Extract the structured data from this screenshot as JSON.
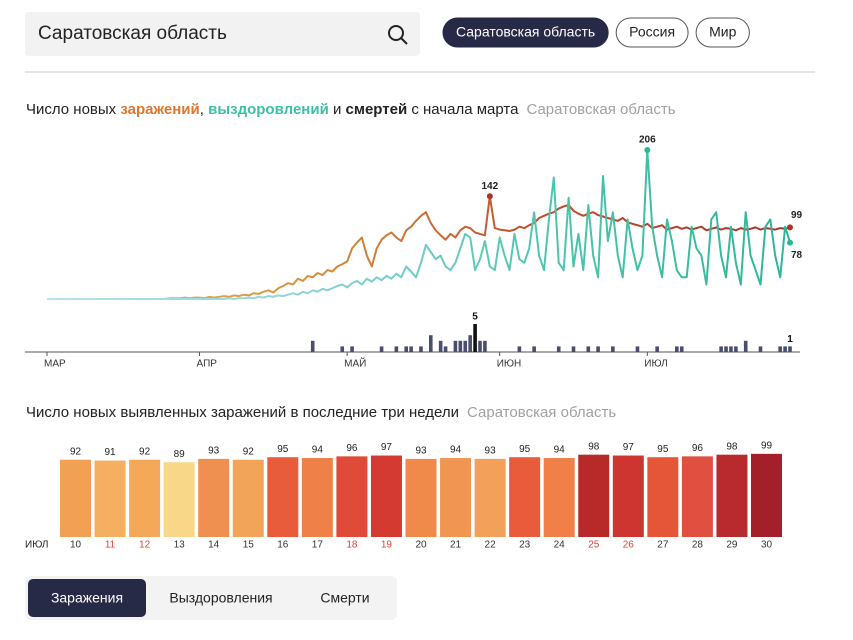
{
  "search": {
    "value": "Саратовская область"
  },
  "region_buttons": {
    "items": [
      "Саратовская область",
      "Россия",
      "Мир"
    ],
    "active": 0
  },
  "chart_data": [
    {
      "type": "line",
      "title_parts": [
        "Число новых ",
        ", ",
        " и ",
        " с начала марта"
      ],
      "region": "Саратовская область",
      "xlim": [
        0,
        151
      ],
      "xticks": [
        {
          "value": 0,
          "label": "МАР"
        },
        {
          "value": 31,
          "label": "АПР"
        },
        {
          "value": 61,
          "label": "МАЙ"
        },
        {
          "value": 92,
          "label": "ИЮН"
        },
        {
          "value": 122,
          "label": "ИЮЛ"
        }
      ],
      "ylim": [
        0,
        206
      ],
      "y2lim": [
        0,
        5
      ],
      "label_points": [
        "max",
        "last"
      ],
      "series": [
        {
          "name": "заражений",
          "color": "#e0762f",
          "gradient": [
            "#e6c46a",
            "#d9923e",
            "#bd4b2c",
            "#a8342a"
          ],
          "values": [
            0,
            0,
            0,
            0,
            0,
            0,
            0,
            0,
            0,
            0,
            0,
            0,
            0,
            0,
            0,
            0,
            0,
            0,
            0,
            0,
            0,
            0,
            0,
            0,
            0,
            1,
            1,
            1,
            2,
            1,
            2,
            2,
            1,
            3,
            2,
            3,
            4,
            3,
            5,
            4,
            6,
            5,
            8,
            7,
            10,
            12,
            9,
            15,
            18,
            22,
            20,
            28,
            25,
            32,
            30,
            36,
            33,
            40,
            38,
            45,
            48,
            52,
            70,
            78,
            85,
            60,
            45,
            70,
            82,
            88,
            92,
            85,
            80,
            95,
            100,
            108,
            115,
            120,
            105,
            95,
            88,
            82,
            90,
            85,
            95,
            100,
            98,
            92,
            90,
            88,
            142,
            98,
            96,
            95,
            94,
            96,
            100,
            98,
            102,
            105,
            112,
            115,
            118,
            120,
            125,
            128,
            130,
            122,
            118,
            115,
            118,
            120,
            116,
            114,
            112,
            110,
            108,
            112,
            106,
            104,
            102,
            100,
            104,
            98,
            100,
            102,
            96,
            98,
            100,
            97,
            99,
            96,
            98,
            100,
            95,
            97,
            99,
            96,
            98,
            97,
            95,
            98,
            96,
            97,
            99,
            96,
            98,
            97,
            96,
            98,
            97,
            99
          ]
        },
        {
          "name": "выздоровлений",
          "color": "#3cbfa3",
          "gradient": [
            "#b9e2e6",
            "#8fd3d8",
            "#4cc6ad",
            "#2cb596"
          ],
          "values": [
            0,
            0,
            0,
            0,
            0,
            0,
            0,
            0,
            0,
            0,
            0,
            0,
            0,
            0,
            0,
            0,
            0,
            0,
            0,
            0,
            0,
            0,
            0,
            0,
            0,
            0,
            0,
            0,
            0,
            0,
            0,
            0,
            0,
            0,
            0,
            0,
            0,
            1,
            0,
            1,
            1,
            2,
            1,
            3,
            2,
            4,
            3,
            5,
            4,
            6,
            8,
            6,
            10,
            8,
            12,
            10,
            14,
            12,
            15,
            18,
            20,
            16,
            22,
            25,
            20,
            28,
            24,
            30,
            26,
            32,
            28,
            35,
            30,
            45,
            38,
            30,
            50,
            75,
            65,
            55,
            60,
            45,
            40,
            50,
            70,
            90,
            85,
            40,
            55,
            80,
            45,
            40,
            85,
            60,
            40,
            90,
            55,
            50,
            70,
            120,
            60,
            40,
            110,
            168,
            50,
            40,
            140,
            45,
            90,
            40,
            130,
            60,
            30,
            170,
            80,
            120,
            60,
            30,
            110,
            70,
            40,
            60,
            206,
            100,
            60,
            30,
            110,
            80,
            40,
            30,
            30,
            100,
            70,
            60,
            20,
            110,
            120,
            60,
            30,
            100,
            50,
            20,
            120,
            60,
            40,
            20,
            100,
            110,
            60,
            30,
            100,
            78
          ]
        },
        {
          "name": "смертей",
          "type": "bar",
          "axis": "y2",
          "color": "#4a4e6e",
          "max_color": "#111111",
          "values": [
            0,
            0,
            0,
            0,
            0,
            0,
            0,
            0,
            0,
            0,
            0,
            0,
            0,
            0,
            0,
            0,
            0,
            0,
            0,
            0,
            0,
            0,
            0,
            0,
            0,
            0,
            0,
            0,
            0,
            0,
            0,
            0,
            0,
            0,
            0,
            0,
            0,
            0,
            0,
            0,
            0,
            0,
            0,
            0,
            0,
            0,
            0,
            0,
            0,
            0,
            0,
            0,
            0,
            0,
            2,
            0,
            0,
            0,
            0,
            0,
            1,
            0,
            1,
            0,
            0,
            0,
            0,
            0,
            1,
            0,
            0,
            1,
            0,
            1,
            1,
            0,
            1,
            0,
            3,
            0,
            2,
            1,
            0,
            2,
            2,
            2,
            3,
            5,
            2,
            2,
            0,
            0,
            0,
            0,
            0,
            0,
            1,
            0,
            0,
            1,
            0,
            0,
            0,
            0,
            1,
            0,
            0,
            1,
            0,
            0,
            1,
            0,
            1,
            0,
            0,
            1,
            0,
            0,
            0,
            0,
            1,
            0,
            0,
            0,
            1,
            0,
            0,
            0,
            1,
            1,
            0,
            0,
            0,
            0,
            0,
            0,
            0,
            1,
            1,
            1,
            1,
            0,
            2,
            0,
            0,
            1,
            0,
            0,
            0,
            1,
            1,
            1
          ]
        }
      ]
    },
    {
      "type": "bar",
      "title": "Число новых выявленных заражений в последние три недели",
      "region": "Саратовская область",
      "x_label": "ИЮЛ",
      "ylim": [
        0,
        100
      ],
      "categories": [
        "10",
        "11",
        "12",
        "13",
        "14",
        "15",
        "16",
        "17",
        "18",
        "19",
        "20",
        "21",
        "22",
        "23",
        "24",
        "25",
        "26",
        "27",
        "28",
        "29",
        "30"
      ],
      "category_label_colors": [
        "#333",
        "#d9443a",
        "#d9443a",
        "#333",
        "#333",
        "#333",
        "#333",
        "#333",
        "#d9443a",
        "#d9443a",
        "#333",
        "#333",
        "#333",
        "#333",
        "#333",
        "#d9443a",
        "#d9443a",
        "#333",
        "#333",
        "#333",
        "#333"
      ],
      "values": [
        92,
        91,
        92,
        89,
        93,
        92,
        95,
        94,
        96,
        97,
        93,
        94,
        93,
        95,
        94,
        98,
        97,
        95,
        96,
        98,
        99
      ],
      "colors": [
        "#f2a054",
        "#f4b060",
        "#f3a85a",
        "#f8d888",
        "#f09050",
        "#f2a458",
        "#e85c3c",
        "#ef8048",
        "#e04a38",
        "#d53a32",
        "#ef8a4a",
        "#f09652",
        "#f3a05a",
        "#e85c3c",
        "#f08048",
        "#b82a2a",
        "#cf3530",
        "#e55538",
        "#e05040",
        "#b92a2e",
        "#a3202a"
      ]
    }
  ],
  "tabs": {
    "items": [
      "Заражения",
      "Выздоровления",
      "Смерти"
    ],
    "active": 0
  }
}
